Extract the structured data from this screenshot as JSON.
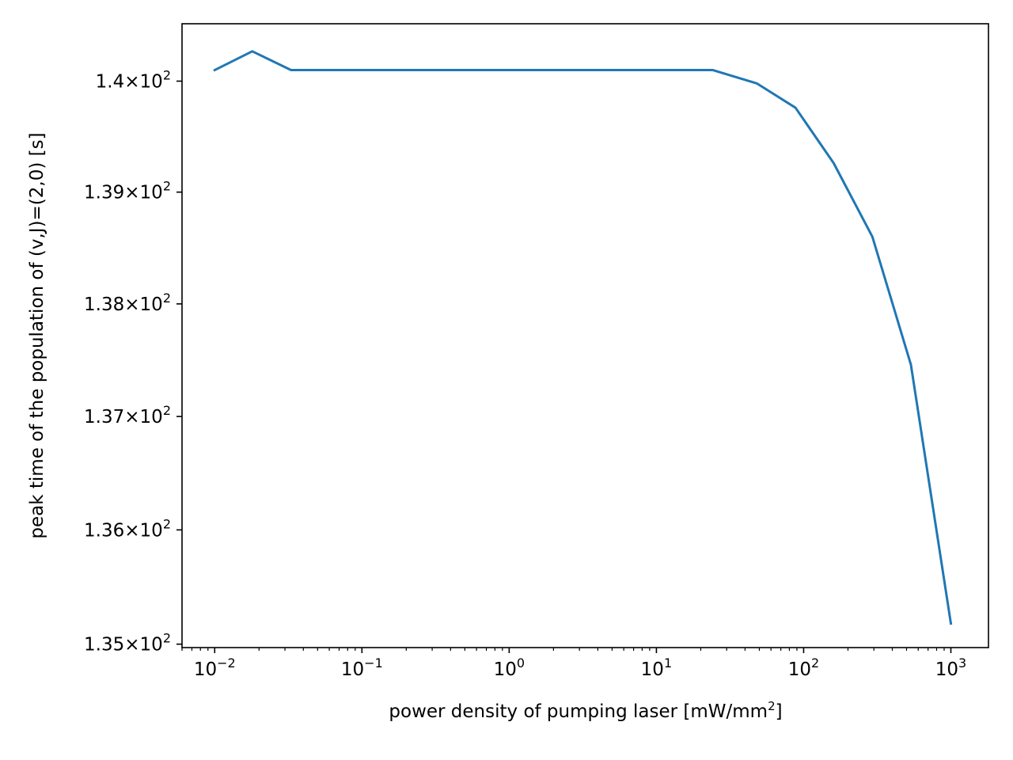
{
  "chart_data": {
    "type": "line",
    "title": "",
    "xlabel": "power density of pumping laser [mW/mm",
    "xlabel_sup": "2",
    "xlabel_suffix": "]",
    "ylabel": "peak time of the population of (v,J)=(2,0) [s]",
    "xscale": "log",
    "yscale": "log",
    "xlim": [
      0.006,
      1800
    ],
    "ylim": [
      134.97,
      140.52
    ],
    "grid": false,
    "line_color": "#1f77b4",
    "x_ticks": [
      {
        "value": 0.01,
        "base": "10",
        "exp": "−2"
      },
      {
        "value": 0.1,
        "base": "10",
        "exp": "−1"
      },
      {
        "value": 1,
        "base": "10",
        "exp": "0"
      },
      {
        "value": 10,
        "base": "10",
        "exp": "1"
      },
      {
        "value": 100,
        "base": "10",
        "exp": "2"
      },
      {
        "value": 1000,
        "base": "10",
        "exp": "3"
      }
    ],
    "y_ticks": [
      {
        "value": 135,
        "mantissa": "1.35",
        "base": "10",
        "exp": "2"
      },
      {
        "value": 136,
        "mantissa": "1.36",
        "base": "10",
        "exp": "2"
      },
      {
        "value": 137,
        "mantissa": "1.37",
        "base": "10",
        "exp": "2"
      },
      {
        "value": 138,
        "mantissa": "1.38",
        "base": "10",
        "exp": "2"
      },
      {
        "value": 139,
        "mantissa": "1.39",
        "base": "10",
        "exp": "2"
      },
      {
        "value": 140,
        "mantissa": "1.4",
        "base": "10",
        "exp": "2"
      }
    ],
    "series": [
      {
        "x": [
          0.01,
          0.018,
          0.033,
          0.06,
          0.11,
          0.2,
          0.36,
          0.66,
          1.2,
          2.2,
          4.0,
          7.3,
          13.3,
          24.2,
          48,
          88,
          160,
          293,
          535,
          1000
        ],
        "y": [
          140.1,
          140.27,
          140.1,
          140.1,
          140.1,
          140.1,
          140.1,
          140.1,
          140.1,
          140.1,
          140.1,
          140.1,
          140.1,
          140.1,
          139.98,
          139.76,
          139.26,
          138.6,
          137.46,
          135.18
        ]
      }
    ]
  }
}
